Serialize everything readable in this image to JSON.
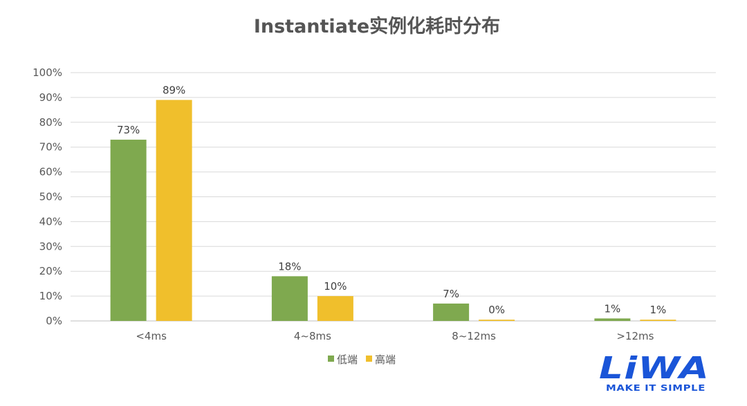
{
  "chart_data": {
    "type": "bar",
    "title": "Instantiate实例化耗时分布",
    "categories": [
      "<4ms",
      "4~8ms",
      "8~12ms",
      ">12ms"
    ],
    "series": [
      {
        "name": "低端",
        "color": "#7fa94f",
        "values": [
          73,
          18,
          7,
          1
        ],
        "labels": [
          "73%",
          "18%",
          "7%",
          "1%"
        ]
      },
      {
        "name": "高端",
        "color": "#f0bf2c",
        "values": [
          89,
          10,
          0.5,
          0.5
        ],
        "labels": [
          "89%",
          "10%",
          "0%",
          "1%"
        ]
      }
    ],
    "ylim": [
      0,
      100
    ],
    "yticks": [
      "0%",
      "10%",
      "20%",
      "30%",
      "40%",
      "50%",
      "60%",
      "70%",
      "80%",
      "90%",
      "100%"
    ],
    "grid": true,
    "legend_position": "bottom"
  },
  "logo": {
    "word": "LiWA",
    "tagline": "MAKE IT SIMPLE"
  }
}
